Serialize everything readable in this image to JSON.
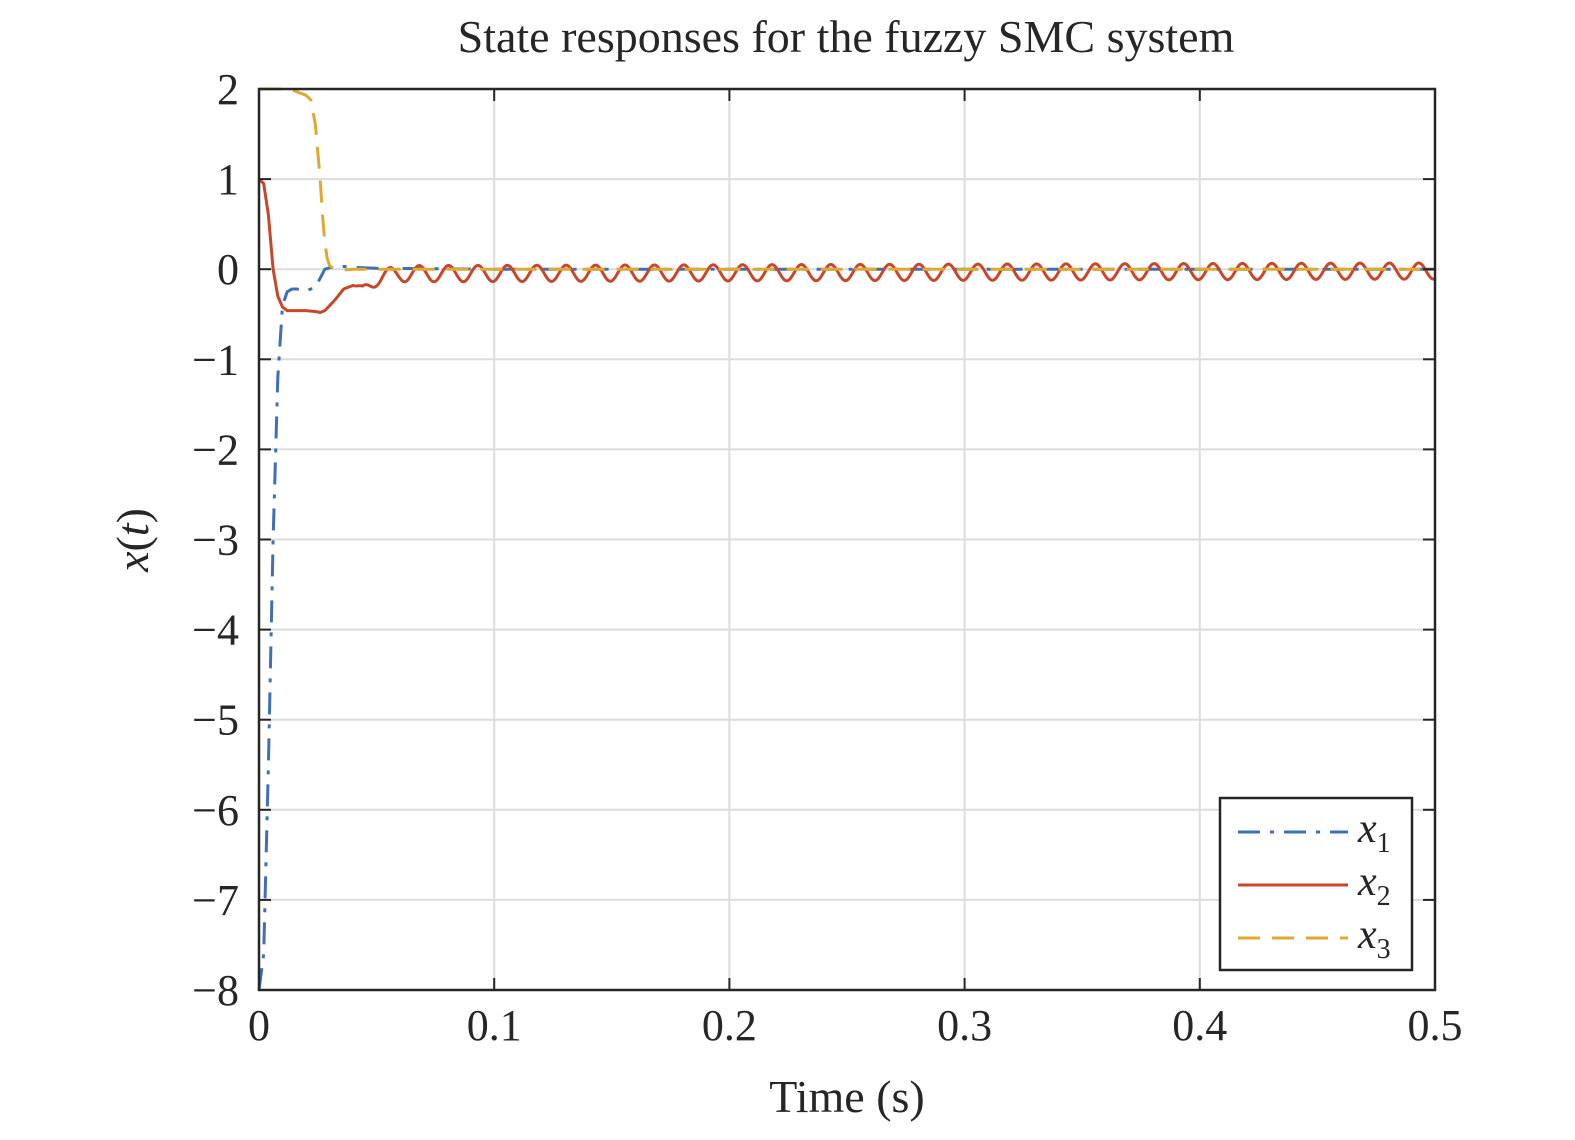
{
  "chart_data": {
    "type": "line",
    "title": "State responses for the fuzzy SMC system",
    "xlabel": "Time (s)",
    "ylabel_main": "x",
    "ylabel_arg": "t",
    "xlim": [
      0,
      0.5
    ],
    "ylim": [
      -8,
      2
    ],
    "xticks": [
      0,
      0.1,
      0.2,
      0.3,
      0.4,
      0.5
    ],
    "xtick_labels": [
      "0",
      "0.1",
      "0.2",
      "0.3",
      "0.4",
      "0.5"
    ],
    "yticks": [
      2,
      1,
      0,
      -1,
      -2,
      -3,
      -4,
      -5,
      -6,
      -7,
      -8
    ],
    "ytick_labels": [
      "2",
      "1",
      "0",
      "−1",
      "−2",
      "−3",
      "−4",
      "−5",
      "−6",
      "−7",
      "−8"
    ],
    "grid": true,
    "legend_position": "bottom-right",
    "series": [
      {
        "name": "x",
        "subscript": "1",
        "color": "#3F6FB5",
        "style": "dashdot",
        "x": [
          0,
          0.002,
          0.004,
          0.006,
          0.008,
          0.01,
          0.012,
          0.014,
          0.016,
          0.02,
          0.024,
          0.028,
          0.032,
          0.036,
          0.04,
          0.05,
          0.1,
          0.2,
          0.3,
          0.4,
          0.5
        ],
        "y": [
          -8,
          -7.6,
          -5.5,
          -3.0,
          -1.2,
          -0.4,
          -0.25,
          -0.22,
          -0.22,
          -0.24,
          -0.2,
          0.0,
          0.03,
          0.03,
          0.02,
          0.01,
          0.0,
          0.0,
          0.0,
          0.0,
          0.0
        ]
      },
      {
        "name": "x",
        "subscript": "2",
        "color": "#C8462A",
        "style": "solid",
        "x": [
          0,
          0.002,
          0.004,
          0.006,
          0.008,
          0.01,
          0.012,
          0.016,
          0.02,
          0.024,
          0.026,
          0.028,
          0.032,
          0.036,
          0.04,
          0.044,
          0.05,
          0.06,
          0.5
        ],
        "y": [
          1,
          0.95,
          0.6,
          0.0,
          -0.3,
          -0.42,
          -0.46,
          -0.46,
          -0.46,
          -0.47,
          -0.48,
          -0.46,
          -0.35,
          -0.22,
          -0.18,
          -0.22,
          -0.1,
          -0.05,
          -0.02
        ],
        "ripple_start": 0.04,
        "ripple_amplitude": 0.09,
        "ripple_period": 0.0125
      },
      {
        "name": "x",
        "subscript": "3",
        "color": "#E0A830",
        "style": "dashed",
        "x": [
          0,
          0.01,
          0.015,
          0.02,
          0.022,
          0.024,
          0.025,
          0.026,
          0.027,
          0.028,
          0.029,
          0.03,
          0.032,
          0.035,
          0.04,
          0.05,
          0.1,
          0.2,
          0.3,
          0.4,
          0.5
        ],
        "y": [
          2,
          2.0,
          1.98,
          1.93,
          1.88,
          1.6,
          1.3,
          1.0,
          0.6,
          0.3,
          0.12,
          0.04,
          0.0,
          -0.01,
          0.0,
          0.0,
          0.0,
          0.0,
          0.0,
          0.0,
          0.0
        ]
      }
    ]
  }
}
